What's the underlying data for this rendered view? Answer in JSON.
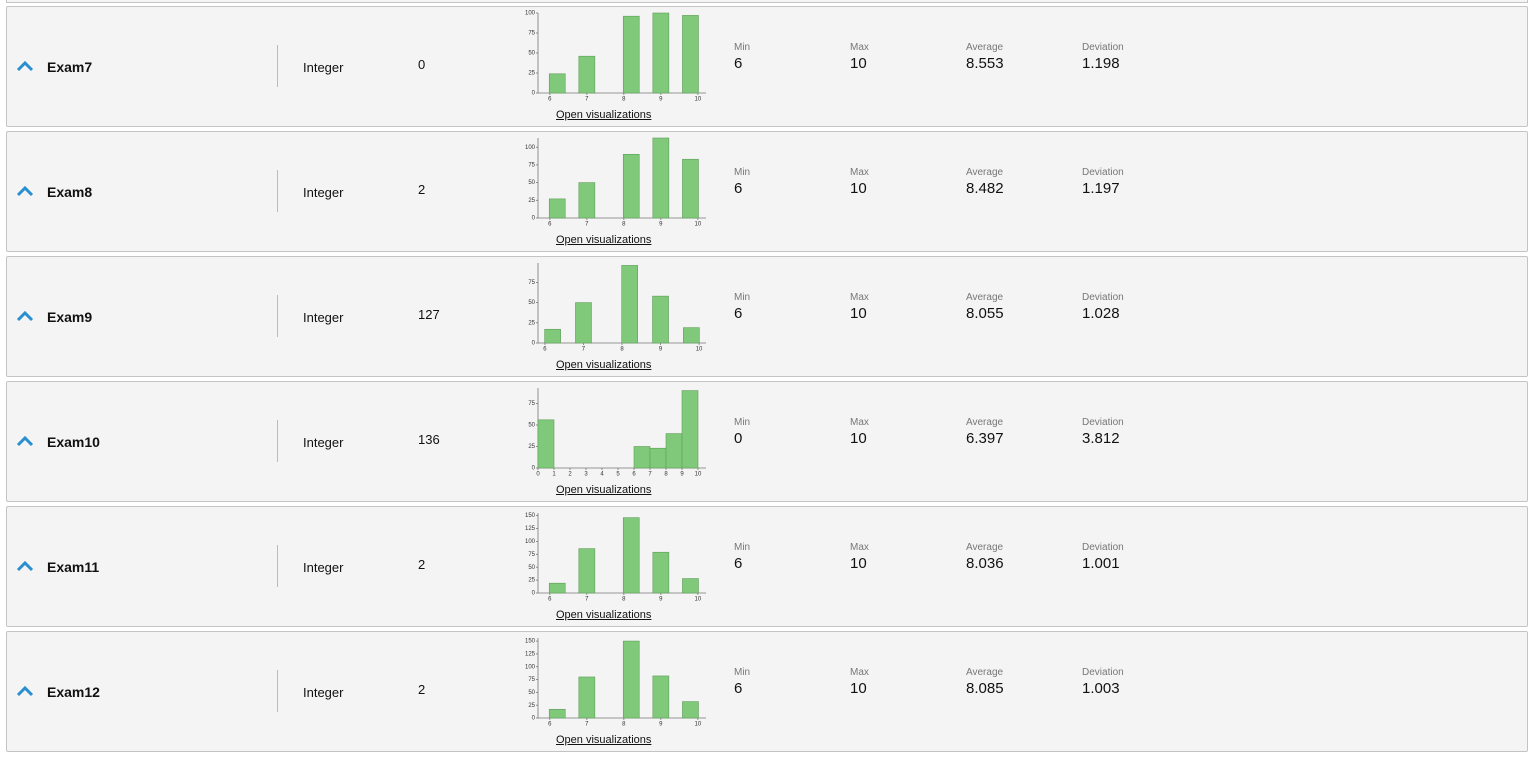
{
  "rows": [
    {
      "name": "Exam7",
      "type": "Integer",
      "missing": 0,
      "link": "Open visualizations",
      "chart": {
        "type": "bar",
        "x": [
          6.2,
          7.0,
          8.2,
          9.0,
          9.8
        ],
        "values": [
          24,
          46,
          96,
          100,
          97
        ],
        "xlim": [
          5.68,
          10.22
        ],
        "ylim": [
          0,
          100
        ],
        "xticks": [
          6,
          7,
          8,
          9,
          10
        ],
        "yticks": [
          0,
          25,
          50,
          75,
          100
        ]
      },
      "stats": [
        {
          "label": "Min",
          "value": 6
        },
        {
          "label": "Max",
          "value": 10
        },
        {
          "label": "Average",
          "value": 8.553
        },
        {
          "label": "Deviation",
          "value": 1.198
        }
      ]
    },
    {
      "name": "Exam8",
      "type": "Integer",
      "missing": 2,
      "link": "Open visualizations",
      "chart": {
        "type": "bar",
        "x": [
          6.2,
          7.0,
          8.2,
          9.0,
          9.8
        ],
        "values": [
          27,
          50,
          90,
          113,
          83
        ],
        "xlim": [
          5.68,
          10.22
        ],
        "ylim": [
          0,
          113
        ],
        "xticks": [
          6,
          7,
          8,
          9,
          10
        ],
        "yticks": [
          0,
          25,
          50,
          75,
          100
        ]
      },
      "stats": [
        {
          "label": "Min",
          "value": 6
        },
        {
          "label": "Max",
          "value": 10
        },
        {
          "label": "Average",
          "value": 8.482
        },
        {
          "label": "Deviation",
          "value": 1.197
        }
      ]
    },
    {
      "name": "Exam9",
      "type": "Integer",
      "missing": 127,
      "link": "Open visualizations",
      "chart": {
        "type": "bar",
        "x": [
          6.2,
          7.0,
          8.2,
          9.0,
          9.8
        ],
        "values": [
          17,
          50,
          96,
          58,
          19
        ],
        "xlim": [
          5.82,
          10.18
        ],
        "ylim": [
          0,
          99
        ],
        "xticks": [
          6,
          7,
          8,
          9,
          10
        ],
        "yticks": [
          0,
          25,
          50,
          75
        ]
      },
      "stats": [
        {
          "label": "Min",
          "value": 6
        },
        {
          "label": "Max",
          "value": 10
        },
        {
          "label": "Average",
          "value": 8.055
        },
        {
          "label": "Deviation",
          "value": 1.028
        }
      ]
    },
    {
      "name": "Exam10",
      "type": "Integer",
      "missing": 136,
      "link": "Open visualizations",
      "chart": {
        "type": "bar",
        "x": [
          0.5,
          6.5,
          7.5,
          8.5,
          9.5
        ],
        "values": [
          56,
          25,
          23,
          40,
          90
        ],
        "xlim": [
          0,
          10.5
        ],
        "ylim": [
          0,
          93
        ],
        "xticks": [
          0,
          1,
          2,
          3,
          4,
          5,
          6,
          7,
          8,
          9,
          10
        ],
        "yticks": [
          0,
          25,
          50,
          75
        ]
      },
      "stats": [
        {
          "label": "Min",
          "value": 0
        },
        {
          "label": "Max",
          "value": 10
        },
        {
          "label": "Average",
          "value": 6.397
        },
        {
          "label": "Deviation",
          "value": 3.812
        }
      ]
    },
    {
      "name": "Exam11",
      "type": "Integer",
      "missing": 2,
      "link": "Open visualizations",
      "chart": {
        "type": "bar",
        "x": [
          6.2,
          7.0,
          8.2,
          9.0,
          9.8
        ],
        "values": [
          19,
          86,
          146,
          79,
          28
        ],
        "xlim": [
          5.68,
          10.22
        ],
        "ylim": [
          0,
          155
        ],
        "xticks": [
          6,
          7,
          8,
          9,
          10
        ],
        "yticks": [
          0,
          25,
          50,
          75,
          100,
          125,
          150
        ]
      },
      "stats": [
        {
          "label": "Min",
          "value": 6
        },
        {
          "label": "Max",
          "value": 10
        },
        {
          "label": "Average",
          "value": 8.036
        },
        {
          "label": "Deviation",
          "value": 1.001
        }
      ]
    },
    {
      "name": "Exam12",
      "type": "Integer",
      "missing": 2,
      "link": "Open visualizations",
      "chart": {
        "type": "bar",
        "x": [
          6.2,
          7.0,
          8.2,
          9.0,
          9.8
        ],
        "values": [
          17,
          80,
          150,
          82,
          32
        ],
        "xlim": [
          5.68,
          10.22
        ],
        "ylim": [
          0,
          156
        ],
        "xticks": [
          6,
          7,
          8,
          9,
          10
        ],
        "yticks": [
          0,
          25,
          50,
          75,
          100,
          125,
          150
        ]
      },
      "stats": [
        {
          "label": "Min",
          "value": 6
        },
        {
          "label": "Max",
          "value": 10
        },
        {
          "label": "Average",
          "value": 8.085
        },
        {
          "label": "Deviation",
          "value": 1.003
        }
      ]
    }
  ]
}
